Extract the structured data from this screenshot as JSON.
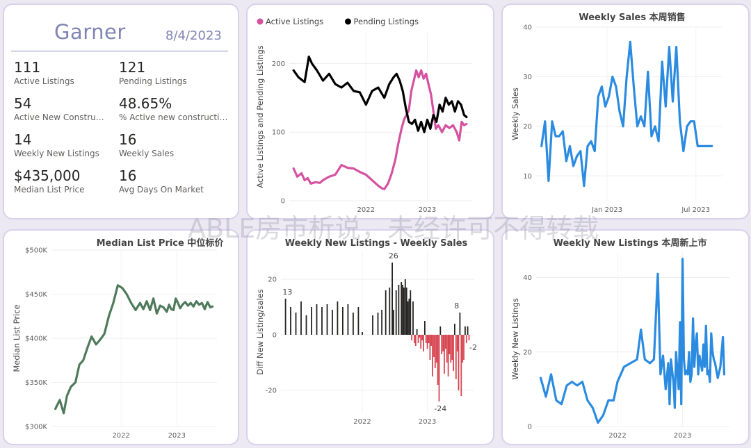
{
  "kpi_card": {
    "title": "Garner",
    "date": "8/4/2023",
    "items": [
      {
        "value": "111",
        "label": "Active Listings"
      },
      {
        "value": "121",
        "label": "Pending Listings"
      },
      {
        "value": "54",
        "label": "Active New Constructio..."
      },
      {
        "value": "48.65%",
        "label": "% Active new constructions"
      },
      {
        "value": "14",
        "label": "Weekly New Listings"
      },
      {
        "value": "16",
        "label": "Weekly Sales"
      },
      {
        "value": "$435,000",
        "label": "Median List Price"
      },
      {
        "value": "16",
        "label": "Avg Days On Market"
      }
    ]
  },
  "watermark": "ABLE房市析说，未经许可不得转载",
  "colors": {
    "active": "#d4529f",
    "pending": "#000000",
    "blue": "#2b8be0",
    "green": "#4e7a5a",
    "bar_pos": "#252423",
    "bar_neg": "#d64550"
  },
  "chart_data": [
    {
      "id": "active_pending",
      "type": "line",
      "title": "",
      "legend": [
        {
          "name": "Active Listings",
          "color": "#d4529f"
        },
        {
          "name": "Pending Listings",
          "color": "#000000"
        }
      ],
      "ylabel": "Active Listings and Pending Listings",
      "xlabel": "",
      "ylim": [
        0,
        245
      ],
      "yticks": [
        0,
        100,
        200
      ],
      "xlim": [
        2020.75,
        2023.72
      ],
      "xticks": [
        {
          "label": "2022",
          "x": 2022.0
        },
        {
          "label": "2023",
          "x": 2023.0
        }
      ],
      "series": [
        {
          "name": "Active Listings",
          "color": "#d4529f",
          "x": [
            2020.82,
            2020.88,
            2020.95,
            2021.0,
            2021.05,
            2021.1,
            2021.18,
            2021.25,
            2021.3,
            2021.4,
            2021.5,
            2021.6,
            2021.7,
            2021.8,
            2021.9,
            2022.0,
            2022.1,
            2022.2,
            2022.26,
            2022.3,
            2022.36,
            2022.42,
            2022.48,
            2022.52,
            2022.58,
            2022.62,
            2022.66,
            2022.7,
            2022.74,
            2022.78,
            2022.82,
            2022.86,
            2022.9,
            2022.94,
            2022.98,
            2023.02,
            2023.06,
            2023.1,
            2023.14,
            2023.18,
            2023.24,
            2023.3,
            2023.36,
            2023.42,
            2023.48,
            2023.52,
            2023.56,
            2023.6,
            2023.64
          ],
          "values": [
            47,
            35,
            40,
            30,
            33,
            25,
            27,
            26,
            30,
            35,
            38,
            52,
            48,
            47,
            42,
            38,
            30,
            22,
            18,
            17,
            25,
            40,
            60,
            80,
            105,
            118,
            125,
            132,
            160,
            175,
            190,
            180,
            190,
            178,
            185,
            170,
            155,
            130,
            105,
            110,
            100,
            110,
            106,
            110,
            100,
            88,
            115,
            110,
            112
          ]
        },
        {
          "name": "Pending Listings",
          "color": "#000000",
          "x": [
            2020.82,
            2020.9,
            2021.0,
            2021.07,
            2021.12,
            2021.2,
            2021.3,
            2021.4,
            2021.5,
            2021.6,
            2021.7,
            2021.8,
            2021.9,
            2022.0,
            2022.1,
            2022.2,
            2022.3,
            2022.38,
            2022.45,
            2022.5,
            2022.55,
            2022.6,
            2022.65,
            2022.7,
            2022.75,
            2022.8,
            2022.85,
            2022.9,
            2022.95,
            2023.0,
            2023.05,
            2023.1,
            2023.15,
            2023.2,
            2023.25,
            2023.3,
            2023.35,
            2023.4,
            2023.45,
            2023.5,
            2023.55,
            2023.6,
            2023.64
          ],
          "values": [
            190,
            180,
            173,
            210,
            200,
            190,
            175,
            185,
            170,
            165,
            172,
            160,
            158,
            140,
            160,
            165,
            150,
            170,
            180,
            185,
            175,
            160,
            135,
            115,
            112,
            118,
            102,
            115,
            100,
            118,
            105,
            125,
            115,
            140,
            130,
            150,
            140,
            145,
            130,
            145,
            140,
            125,
            122
          ]
        }
      ]
    },
    {
      "id": "weekly_sales",
      "type": "line",
      "title": "Weekly Sales 本周销售",
      "ylabel": "Weekly Sales",
      "xlabel": "",
      "ylim": [
        5,
        40
      ],
      "yticks": [
        10,
        20,
        30,
        40
      ],
      "xlim": [
        2022.6,
        2023.65
      ],
      "xticks": [
        {
          "label": "Jan 2023",
          "x": 2023.0
        },
        {
          "label": "Jul 2023",
          "x": 2023.5
        }
      ],
      "series": [
        {
          "name": "Weekly Sales",
          "color": "#2b8be0",
          "x": [
            2022.63,
            2022.65,
            2022.67,
            2022.69,
            2022.71,
            2022.73,
            2022.75,
            2022.77,
            2022.79,
            2022.81,
            2022.83,
            2022.85,
            2022.87,
            2022.89,
            2022.91,
            2022.93,
            2022.95,
            2022.97,
            2022.99,
            2023.01,
            2023.03,
            2023.05,
            2023.07,
            2023.09,
            2023.11,
            2023.13,
            2023.15,
            2023.17,
            2023.19,
            2023.21,
            2023.23,
            2023.25,
            2023.27,
            2023.29,
            2023.31,
            2023.33,
            2023.35,
            2023.37,
            2023.39,
            2023.41,
            2023.43,
            2023.45,
            2023.47,
            2023.49,
            2023.51,
            2023.53,
            2023.55,
            2023.57,
            2023.59
          ],
          "values": [
            16,
            21,
            9,
            21,
            18,
            18,
            19,
            13,
            16,
            12,
            14,
            15,
            8,
            16,
            17,
            15,
            26,
            28,
            24,
            26,
            30,
            28,
            23,
            20,
            30,
            37,
            28,
            20,
            22,
            20,
            31,
            18,
            20,
            17,
            33,
            24,
            36,
            25,
            36,
            21,
            15,
            20,
            21,
            21,
            16,
            16,
            16,
            16,
            16
          ]
        }
      ]
    },
    {
      "id": "median_price",
      "type": "line",
      "title": "Median List Price  中位标价",
      "ylabel": "Median List Price",
      "xlabel": "",
      "ylim": [
        300000,
        500000
      ],
      "yticks": [
        {
          "v": 300000,
          "label": "$300K"
        },
        {
          "v": 350000,
          "label": "$350K"
        },
        {
          "v": 400000,
          "label": "$400K"
        },
        {
          "v": 450000,
          "label": "$450K"
        },
        {
          "v": 500000,
          "label": "$500K"
        }
      ],
      "xlim": [
        2020.75,
        2023.72
      ],
      "xticks": [
        {
          "label": "2022",
          "x": 2022.0
        },
        {
          "label": "2023",
          "x": 2023.0
        }
      ],
      "series": [
        {
          "name": "Median List Price",
          "color": "#4e7a5a",
          "x": [
            2020.82,
            2020.9,
            2020.97,
            2021.03,
            2021.1,
            2021.18,
            2021.25,
            2021.32,
            2021.4,
            2021.47,
            2021.55,
            2021.62,
            2021.7,
            2021.78,
            2021.86,
            2021.94,
            2022.02,
            2022.1,
            2022.18,
            2022.26,
            2022.34,
            2022.4,
            2022.46,
            2022.52,
            2022.58,
            2022.64,
            2022.7,
            2022.76,
            2022.82,
            2022.86,
            2022.9,
            2022.94,
            2022.98,
            2023.02,
            2023.06,
            2023.1,
            2023.15,
            2023.2,
            2023.25,
            2023.3,
            2023.35,
            2023.4,
            2023.45,
            2023.5,
            2023.55,
            2023.6,
            2023.64
          ],
          "values": [
            320000,
            330000,
            315000,
            335000,
            345000,
            350000,
            370000,
            375000,
            390000,
            402000,
            393000,
            398000,
            405000,
            425000,
            440000,
            460000,
            457000,
            450000,
            440000,
            432000,
            440000,
            433000,
            442000,
            432000,
            445000,
            428000,
            437000,
            435000,
            430000,
            438000,
            433000,
            432000,
            445000,
            440000,
            434000,
            438000,
            441000,
            437000,
            440000,
            436000,
            442000,
            438000,
            440000,
            433000,
            441000,
            435000,
            436000
          ]
        }
      ]
    },
    {
      "id": "diff_bars",
      "type": "bar",
      "title": "Weekly New Listings - Weekly Sales",
      "ylabel": "Diff New Listing/sales",
      "xlabel": "",
      "ylim": [
        -28,
        30
      ],
      "yticks": [
        -20,
        0,
        20
      ],
      "xlim": [
        2020.75,
        2023.72
      ],
      "xticks": [
        {
          "label": "2022",
          "x": 2022.0
        },
        {
          "label": "2023",
          "x": 2023.0
        }
      ],
      "annotations": [
        {
          "label": "13",
          "x": 2020.85,
          "y": 13
        },
        {
          "label": "26",
          "x": 2022.48,
          "y": 26
        },
        {
          "label": "8",
          "x": 2023.45,
          "y": 8
        },
        {
          "label": "-24",
          "x": 2023.2,
          "y": -24
        },
        {
          "label": "-2",
          "x": 2023.64,
          "y": -2
        }
      ],
      "x": [
        2020.82,
        2020.9,
        2020.98,
        2021.06,
        2021.14,
        2021.22,
        2021.3,
        2021.38,
        2021.46,
        2021.54,
        2021.62,
        2021.7,
        2021.78,
        2021.86,
        2021.94,
        2022.0,
        2022.16,
        2022.24,
        2022.3,
        2022.36,
        2022.42,
        2022.46,
        2022.48,
        2022.52,
        2022.56,
        2022.6,
        2022.62,
        2022.64,
        2022.66,
        2022.68,
        2022.7,
        2022.72,
        2022.74,
        2022.76,
        2022.78,
        2022.8,
        2022.82,
        2022.84,
        2022.86,
        2022.88,
        2022.9,
        2022.92,
        2022.94,
        2022.96,
        2022.98,
        2023.0,
        2023.02,
        2023.04,
        2023.06,
        2023.08,
        2023.1,
        2023.12,
        2023.14,
        2023.16,
        2023.18,
        2023.2,
        2023.22,
        2023.24,
        2023.26,
        2023.28,
        2023.3,
        2023.32,
        2023.34,
        2023.36,
        2023.38,
        2023.4,
        2023.42,
        2023.44,
        2023.46,
        2023.48,
        2023.5,
        2023.52,
        2023.54,
        2023.56,
        2023.58,
        2023.6,
        2023.62,
        2023.64
      ],
      "values": [
        13,
        10,
        8,
        12,
        7,
        10,
        11,
        10,
        11,
        9,
        12,
        10,
        11,
        8,
        10,
        1,
        7,
        8,
        9,
        16,
        17,
        26,
        9,
        16,
        18,
        19,
        18,
        17,
        20,
        17,
        12,
        13,
        16,
        -2,
        12,
        -3,
        -4,
        2,
        -3,
        -1,
        -5,
        -2,
        -6,
        5,
        -3,
        -5,
        -3,
        -9,
        -4,
        -15,
        -8,
        -12,
        -10,
        -18,
        -24,
        3,
        -7,
        -6,
        -14,
        -5,
        -10,
        -15,
        -7,
        -10,
        -9,
        -13,
        4,
        -16,
        -6,
        -20,
        8,
        -22,
        -10,
        -9,
        3,
        -3,
        3,
        -2
      ]
    },
    {
      "id": "weekly_new",
      "type": "line",
      "title": "Weekly New Listings  本周新上市",
      "ylabel": "Weekly New Listings",
      "xlabel": "",
      "ylim": [
        0,
        47
      ],
      "yticks": [
        0,
        20,
        40
      ],
      "xlim": [
        2020.75,
        2023.72
      ],
      "xticks": [
        {
          "label": "2022",
          "x": 2022.0
        },
        {
          "label": "2023",
          "x": 2023.0
        }
      ],
      "series": [
        {
          "name": "Weekly New Listings",
          "color": "#2b8be0",
          "x": [
            2020.82,
            2020.9,
            2020.98,
            2021.06,
            2021.14,
            2021.22,
            2021.3,
            2021.38,
            2021.46,
            2021.54,
            2021.62,
            2021.7,
            2021.78,
            2021.86,
            2021.94,
            2022.0,
            2022.1,
            2022.2,
            2022.3,
            2022.36,
            2022.42,
            2022.5,
            2022.56,
            2022.62,
            2022.66,
            2022.7,
            2022.74,
            2022.78,
            2022.8,
            2022.82,
            2022.84,
            2022.86,
            2022.88,
            2022.9,
            2022.92,
            2022.94,
            2022.96,
            2022.98,
            2023.0,
            2023.02,
            2023.04,
            2023.06,
            2023.08,
            2023.1,
            2023.12,
            2023.14,
            2023.16,
            2023.18,
            2023.2,
            2023.22,
            2023.24,
            2023.26,
            2023.28,
            2023.3,
            2023.32,
            2023.34,
            2023.36,
            2023.38,
            2023.4,
            2023.42,
            2023.44,
            2023.46,
            2023.48,
            2023.5,
            2023.54,
            2023.58,
            2023.62,
            2023.64
          ],
          "values": [
            13,
            8,
            14,
            7,
            6,
            11,
            12,
            11,
            12,
            7,
            5,
            1,
            3,
            7,
            7,
            12,
            16,
            17,
            18,
            26,
            18,
            17,
            18,
            41,
            14,
            19,
            10,
            17,
            6,
            18,
            15,
            12,
            5,
            20,
            15,
            10,
            28,
            6,
            45,
            18,
            14,
            15,
            14,
            20,
            12,
            14,
            29,
            16,
            22,
            25,
            14,
            19,
            17,
            15,
            22,
            16,
            27,
            14,
            15,
            12,
            25,
            20,
            18,
            17,
            13,
            16,
            24,
            14
          ]
        }
      ]
    }
  ]
}
